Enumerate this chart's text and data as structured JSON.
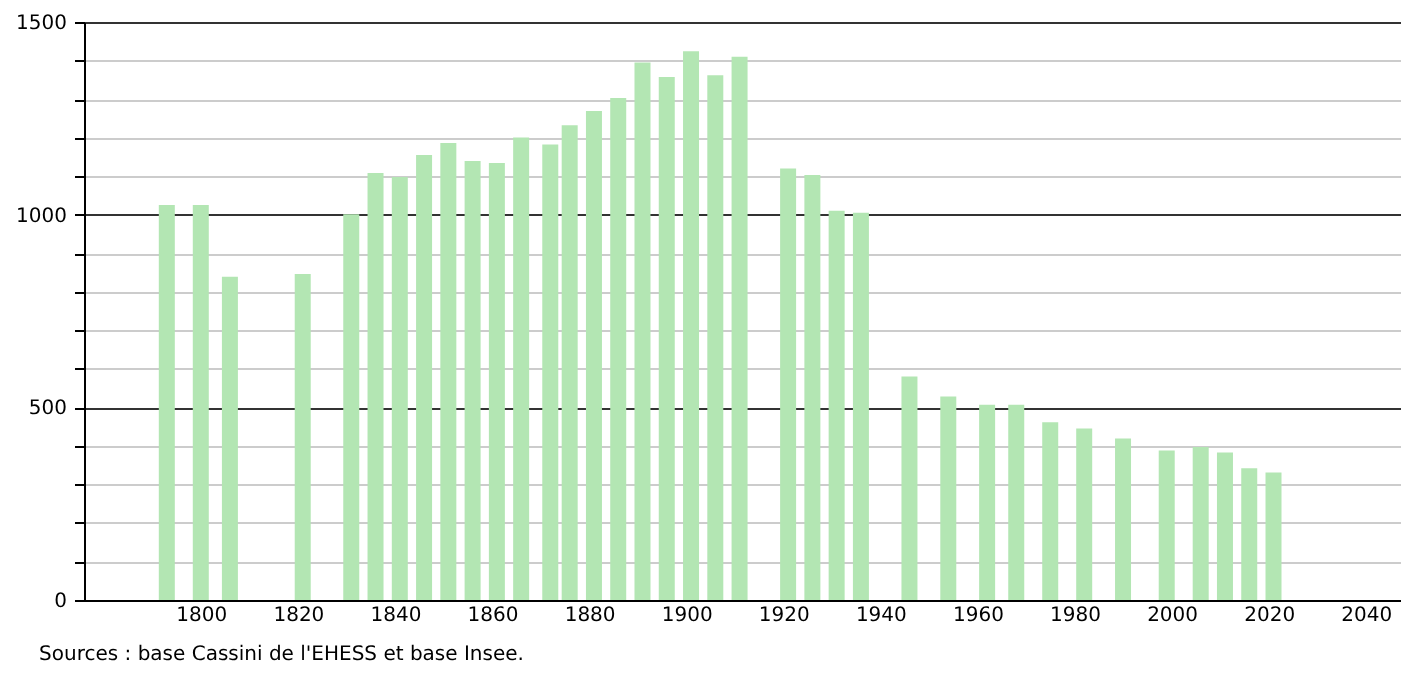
{
  "chart_data": {
    "type": "bar",
    "x": [
      1793,
      1800,
      1806,
      1821,
      1831,
      1836,
      1841,
      1846,
      1851,
      1856,
      1861,
      1866,
      1872,
      1876,
      1881,
      1886,
      1891,
      1896,
      1901,
      1906,
      1911,
      1921,
      1926,
      1931,
      1936,
      1946,
      1954,
      1962,
      1968,
      1975,
      1982,
      1990,
      1999,
      2006,
      2011,
      2016,
      2021
    ],
    "values": [
      1025,
      1025,
      839,
      846,
      1001,
      1108,
      1098,
      1155,
      1186,
      1139,
      1134,
      1200,
      1182,
      1232,
      1269,
      1303,
      1395,
      1357,
      1424,
      1362,
      1410,
      1120,
      1103,
      1010,
      1005,
      580,
      528,
      507,
      507,
      461,
      445,
      419,
      388,
      397,
      383,
      342,
      331
    ],
    "color": "#b3e6b3",
    "xlim": [
      1778,
      2045
    ],
    "xticks": [
      1800,
      1820,
      1840,
      1860,
      1880,
      1900,
      1920,
      1940,
      1960,
      1980,
      2000,
      2020,
      2040
    ],
    "ylim": [
      0,
      1500
    ],
    "yticks": [
      0,
      {
        "value": 100,
        "label": null
      },
      {
        "value": 200,
        "label": null
      },
      {
        "value": 300,
        "label": null
      },
      {
        "value": 400,
        "label": null
      },
      500,
      {
        "value": 600,
        "label": null
      },
      {
        "value": 700,
        "label": null
      },
      {
        "value": 800,
        "label": null
      },
      {
        "value": 900,
        "label": null
      },
      1000,
      {
        "value": 1100,
        "label": null
      },
      {
        "value": 1200,
        "label": null
      },
      {
        "value": 1300,
        "label": null
      },
      {
        "value": 1400,
        "label": null
      },
      1500
    ],
    "grid": "y",
    "annotations": [
      "Sources : base Cassini de l'EHESS et base Insee."
    ]
  }
}
